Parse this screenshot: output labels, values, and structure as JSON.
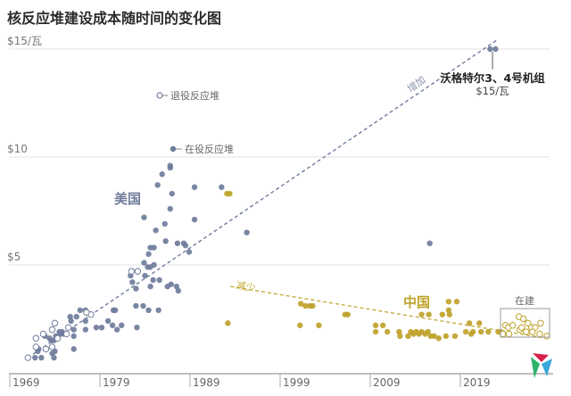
{
  "title": "核反应堆建设成本随时间的变化图",
  "chart_data": {
    "type": "scatter",
    "title": "核反应堆建设成本随时间的变化图",
    "xlabel": "",
    "ylabel": "",
    "xlim": [
      1967,
      2031
    ],
    "ylim": [
      0,
      15.5
    ],
    "x_ticks": [
      "1969",
      "1979",
      "1989",
      "1999",
      "2009",
      "2019"
    ],
    "y_ticks": [
      {
        "value": 5,
        "label": "$5"
      },
      {
        "value": 10,
        "label": "$10"
      },
      {
        "value": 15,
        "label": "$15/瓦"
      }
    ],
    "grid": "horizontal",
    "colors": {
      "us": "#6f7c9b",
      "china": "#bfa22a"
    },
    "legend": {
      "retired": "退役反应堆",
      "operating": "在役反应堆"
    },
    "series": [
      {
        "name": "美国",
        "status": "在役",
        "points": [
          [
            1986.8,
            9.6
          ],
          [
            1986.8,
            9.5
          ],
          [
            1985.9,
            9.2
          ],
          [
            1985.4,
            8.7
          ],
          [
            1989.5,
            8.6
          ],
          [
            1992.5,
            8.6
          ],
          [
            1987.0,
            8.3
          ],
          [
            1986.8,
            7.6
          ],
          [
            1983.9,
            7.2
          ],
          [
            1989.5,
            7.1
          ],
          [
            1995.3,
            6.5
          ],
          [
            1986.2,
            6.9
          ],
          [
            1985.2,
            6.6
          ],
          [
            1986.3,
            6.1
          ],
          [
            1987.6,
            6.0
          ],
          [
            1988.3,
            6.0
          ],
          [
            1988.5,
            5.9
          ],
          [
            1988.9,
            5.6
          ],
          [
            1984.6,
            5.8
          ],
          [
            1985.0,
            5.8
          ],
          [
            1984.4,
            5.5
          ],
          [
            1983.9,
            5.1
          ],
          [
            1984.3,
            4.9
          ],
          [
            1984.6,
            4.9
          ],
          [
            1985.0,
            5.0
          ],
          [
            1982.4,
            4.5
          ],
          [
            1984.0,
            4.5
          ],
          [
            1982.6,
            4.2
          ],
          [
            1983.0,
            3.9
          ],
          [
            1984.6,
            4.0
          ],
          [
            1984.9,
            4.3
          ],
          [
            1985.6,
            4.3
          ],
          [
            1986.5,
            4.0
          ],
          [
            1986.9,
            4.1
          ],
          [
            1987.5,
            4.0
          ],
          [
            1987.7,
            3.8
          ],
          [
            1983.0,
            3.1
          ],
          [
            1983.8,
            3.1
          ],
          [
            1984.4,
            2.9
          ],
          [
            1985.5,
            2.9
          ],
          [
            1983.1,
            2.1
          ],
          [
            1980.5,
            2.9
          ],
          [
            1980.7,
            2.9
          ],
          [
            1979.9,
            2.4
          ],
          [
            1980.4,
            2.2
          ],
          [
            1980.9,
            2.0
          ],
          [
            1981.4,
            2.2
          ],
          [
            1978.6,
            2.1
          ],
          [
            1979.2,
            2.1
          ],
          [
            1976.8,
            2.9
          ],
          [
            1977.4,
            2.9
          ],
          [
            1977.4,
            2.4
          ],
          [
            1977.4,
            2.0
          ],
          [
            1975.7,
            2.6
          ],
          [
            1975.8,
            2.4
          ],
          [
            1976.4,
            2.6
          ],
          [
            1976.1,
            2.0
          ],
          [
            1976.1,
            1.7
          ],
          [
            1976.1,
            1.1
          ],
          [
            1974.5,
            1.9
          ],
          [
            1974.8,
            1.9
          ],
          [
            1974.1,
            1.7
          ],
          [
            1973.6,
            1.5
          ],
          [
            1973.9,
            1.5
          ],
          [
            1972.9,
            1.7
          ],
          [
            1974.0,
            1.0
          ],
          [
            1973.7,
            0.9
          ],
          [
            1973.9,
            0.7
          ],
          [
            1971.8,
            0.7
          ],
          [
            1972.5,
            0.7
          ],
          [
            1972.1,
            1.0
          ],
          [
            1972.2,
            1.1
          ],
          [
            1974.6,
            1.8
          ],
          [
            1975.0,
            1.8
          ],
          [
            1973.4,
            1.6
          ],
          [
            2015.6,
            6.0
          ],
          [
            2022.3,
            15.0
          ],
          [
            2022.9,
            15.0
          ]
        ]
      },
      {
        "name": "美国",
        "status": "退役",
        "points": [
          [
            1982.5,
            4.7
          ],
          [
            1983.2,
            4.7
          ],
          [
            1978.0,
            2.7
          ],
          [
            1977.5,
            2.8
          ],
          [
            1974.0,
            2.3
          ],
          [
            1973.7,
            2.0
          ],
          [
            1972.7,
            1.8
          ],
          [
            1971.9,
            1.6
          ],
          [
            1975.5,
            2.1
          ],
          [
            1975.3,
            1.8
          ],
          [
            1971.9,
            1.2
          ],
          [
            1973.0,
            1.1
          ],
          [
            1971.0,
            0.7
          ],
          [
            1974.3,
            1.6
          ],
          [
            1973.7,
            1.2
          ]
        ]
      },
      {
        "name": "中国",
        "status": "在役",
        "points": [
          [
            1993.1,
            8.3
          ],
          [
            1993.4,
            8.3
          ],
          [
            1993.2,
            2.3
          ],
          [
            2001.3,
            3.2
          ],
          [
            2001.8,
            3.1
          ],
          [
            2002.3,
            3.1
          ],
          [
            2002.6,
            3.1
          ],
          [
            2001.2,
            2.2
          ],
          [
            2003.3,
            2.2
          ],
          [
            2006.2,
            2.7
          ],
          [
            2006.5,
            2.7
          ],
          [
            2009.6,
            2.2
          ],
          [
            2010.4,
            2.2
          ],
          [
            2009.6,
            1.9
          ],
          [
            2010.9,
            1.9
          ],
          [
            2012.2,
            1.9
          ],
          [
            2012.3,
            1.7
          ],
          [
            2013.2,
            1.7
          ],
          [
            2013.5,
            1.9
          ],
          [
            2013.8,
            1.8
          ],
          [
            2014.1,
            1.9
          ],
          [
            2014.4,
            1.8
          ],
          [
            2014.7,
            1.9
          ],
          [
            2015.1,
            1.8
          ],
          [
            2015.4,
            1.9
          ],
          [
            2015.7,
            1.7
          ],
          [
            2016.1,
            1.7
          ],
          [
            2016.6,
            1.6
          ],
          [
            2017.4,
            1.7
          ],
          [
            2018.4,
            1.7
          ],
          [
            2014.7,
            2.7
          ],
          [
            2015.5,
            2.7
          ],
          [
            2017.0,
            2.7
          ],
          [
            2017.7,
            2.9
          ],
          [
            2017.8,
            2.7
          ],
          [
            2017.7,
            3.3
          ],
          [
            2018.6,
            3.3
          ],
          [
            2019.6,
            1.9
          ],
          [
            2020.2,
            1.8
          ],
          [
            2020.4,
            1.9
          ],
          [
            2020.0,
            2.3
          ],
          [
            2021.1,
            2.3
          ],
          [
            2021.3,
            1.9
          ],
          [
            2022.1,
            1.9
          ],
          [
            2023.2,
            1.9
          ],
          [
            2023.5,
            1.9
          ]
        ]
      },
      {
        "name": "中国",
        "status": "在建",
        "points": [
          [
            2024.0,
            2.2
          ],
          [
            2024.3,
            2.1
          ],
          [
            2024.8,
            2.2
          ],
          [
            2025.5,
            2.6
          ],
          [
            2026.0,
            2.5
          ],
          [
            2026.5,
            2.3
          ],
          [
            2026.9,
            2.1
          ],
          [
            2027.3,
            2.1
          ],
          [
            2027.9,
            2.3
          ],
          [
            2027.8,
            1.8
          ],
          [
            2028.6,
            1.7
          ],
          [
            2023.7,
            1.8
          ],
          [
            2024.4,
            1.8
          ],
          [
            2025.6,
            2.0
          ],
          [
            2026.3,
            1.9
          ],
          [
            2027.0,
            1.9
          ],
          [
            2025.8,
            2.1
          ]
        ]
      }
    ],
    "trends": [
      {
        "label": "增加",
        "from": [
          1971.0,
          0.7
        ],
        "to": [
          2023.0,
          15.4
        ]
      },
      {
        "label": "减少",
        "from": [
          1993.5,
          4.0
        ],
        "to": [
          2028.6,
          1.6
        ]
      }
    ],
    "annotations": {
      "us_label": "美国",
      "china_label": "中国",
      "under_construction": "在建",
      "vogtle_name": "沃格特尔3、4号机组",
      "vogtle_cost": "$15/瓦"
    }
  }
}
